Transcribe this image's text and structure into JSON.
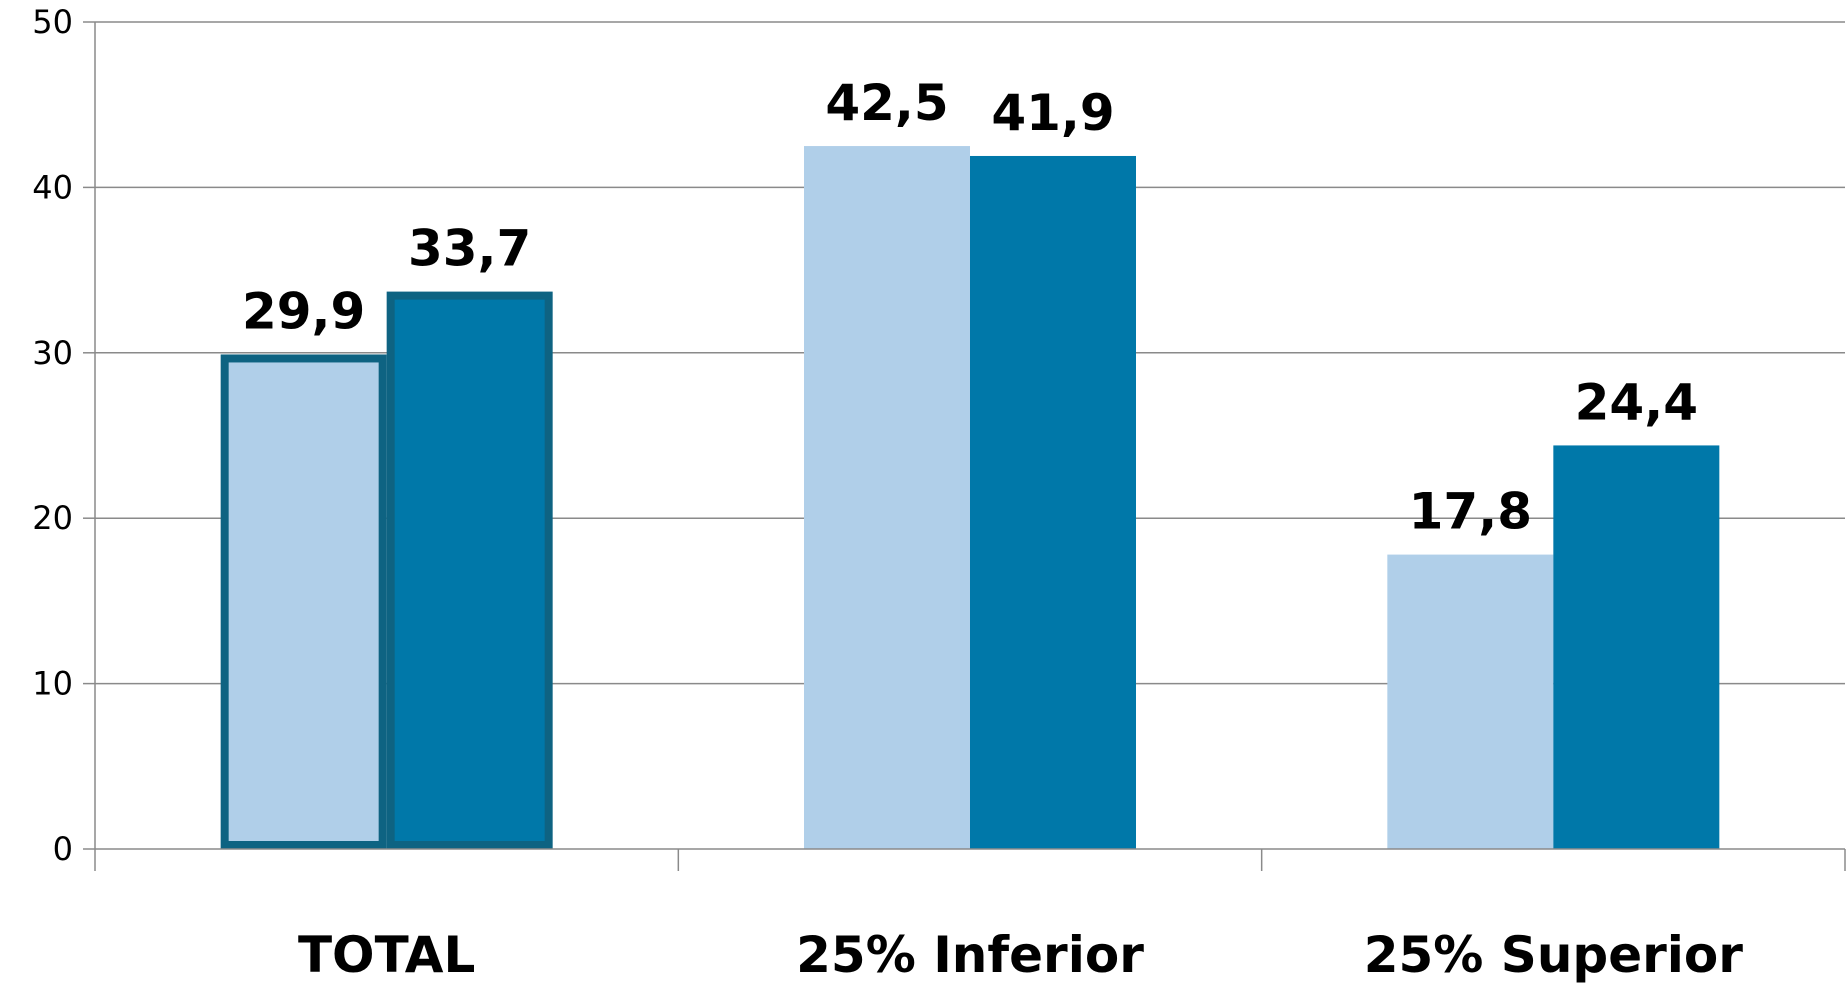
{
  "chart_data": {
    "type": "bar",
    "categories": [
      "TOTAL",
      "25% Inferior",
      "25% Superior"
    ],
    "series": [
      {
        "values": [
          29.9,
          42.5,
          17.8
        ],
        "labels": [
          "29,9",
          "42,5",
          "17,8"
        ],
        "color": "#B0CFE9"
      },
      {
        "values": [
          33.7,
          41.9,
          24.4
        ],
        "labels": [
          "33,7",
          "41,9",
          "24,4"
        ],
        "color": "#0078A9"
      }
    ],
    "highlight": {
      "category": "TOTAL",
      "outline_color": "#0E6382"
    },
    "ylim": [
      0,
      50
    ],
    "yticks": [
      0,
      10,
      20,
      30,
      40,
      50
    ],
    "grid": true,
    "legend": "none"
  }
}
